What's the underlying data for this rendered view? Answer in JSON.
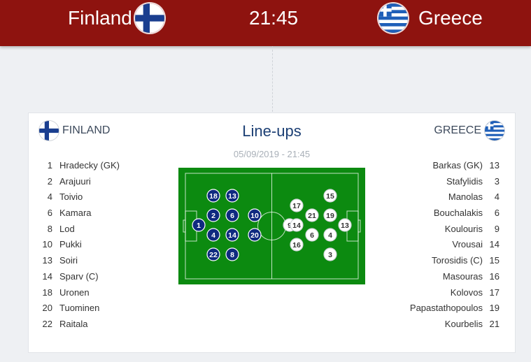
{
  "match": {
    "home_team": "Finland",
    "away_team": "Greece",
    "time": "21:45"
  },
  "lineups": {
    "title": "Line-ups",
    "date": "05/09/2019 - 21:45",
    "home_label": "FINLAND",
    "away_label": "GREECE",
    "home_players": [
      {
        "number": "1",
        "name": "Hradecky (GK)"
      },
      {
        "number": "2",
        "name": "Arajuuri"
      },
      {
        "number": "4",
        "name": "Toivio"
      },
      {
        "number": "6",
        "name": "Kamara"
      },
      {
        "number": "8",
        "name": "Lod"
      },
      {
        "number": "10",
        "name": "Pukki"
      },
      {
        "number": "13",
        "name": "Soiri"
      },
      {
        "number": "14",
        "name": "Sparv (C)"
      },
      {
        "number": "18",
        "name": "Uronen"
      },
      {
        "number": "20",
        "name": "Tuominen"
      },
      {
        "number": "22",
        "name": "Raitala"
      }
    ],
    "away_players": [
      {
        "number": "13",
        "name": "Barkas (GK)"
      },
      {
        "number": "3",
        "name": "Stafylidis"
      },
      {
        "number": "4",
        "name": "Manolas"
      },
      {
        "number": "6",
        "name": "Bouchalakis"
      },
      {
        "number": "9",
        "name": "Koulouris"
      },
      {
        "number": "14",
        "name": "Vrousai"
      },
      {
        "number": "15",
        "name": "Torosidis (C)"
      },
      {
        "number": "16",
        "name": "Masouras"
      },
      {
        "number": "17",
        "name": "Kolovos"
      },
      {
        "number": "19",
        "name": "Papastathopoulos"
      },
      {
        "number": "21",
        "name": "Kourbelis"
      }
    ],
    "pitch_home_markers": [
      "18",
      "13",
      "2",
      "6",
      "10",
      "1",
      "4",
      "14",
      "20",
      "22",
      "8"
    ],
    "pitch_away_markers": [
      "15",
      "17",
      "21",
      "19",
      "13",
      "9",
      "14",
      "6",
      "4",
      "16",
      "3"
    ]
  },
  "colors": {
    "header_bg": "#8e130f",
    "title_text": "#1c3f74",
    "pitch_green": "#0c8a10",
    "home_marker": "#0f2a80",
    "away_marker": "#ffffff"
  },
  "icons": {
    "home_flag": "finland-flag-icon",
    "away_flag": "greece-flag-icon"
  }
}
